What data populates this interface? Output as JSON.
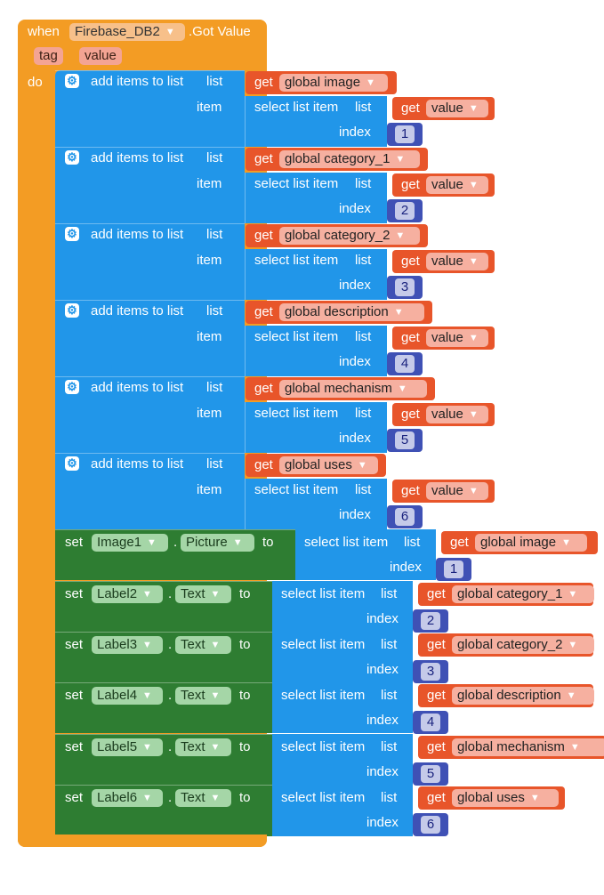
{
  "event": {
    "when_label": "when",
    "component": "Firebase_DB2",
    "event_name": ".Got Value",
    "params": [
      "tag",
      "value"
    ],
    "do_label": "do"
  },
  "labels": {
    "add_items": "add items to list",
    "list": "list",
    "item": "item",
    "select_list_item": "select list item",
    "index": "index",
    "get": "get",
    "set": "set",
    "dot": ".",
    "to": "to"
  },
  "add_blocks": [
    {
      "list_var": "global image",
      "item_var": "value",
      "index": "1"
    },
    {
      "list_var": "global category_1",
      "item_var": "value",
      "index": "2"
    },
    {
      "list_var": "global category_2",
      "item_var": "value",
      "index": "3"
    },
    {
      "list_var": "global description",
      "item_var": "value",
      "index": "4"
    },
    {
      "list_var": "global mechanism",
      "item_var": "value",
      "index": "5"
    },
    {
      "list_var": "global uses",
      "item_var": "value",
      "index": "6"
    }
  ],
  "set_blocks": [
    {
      "component": "Image1",
      "property": "Picture",
      "list_var": "global image",
      "index": "1"
    },
    {
      "component": "Label2",
      "property": "Text",
      "list_var": "global category_1",
      "index": "2"
    },
    {
      "component": "Label3",
      "property": "Text",
      "list_var": "global category_2",
      "index": "3"
    },
    {
      "component": "Label4",
      "property": "Text",
      "list_var": "global description",
      "index": "4"
    },
    {
      "component": "Label5",
      "property": "Text",
      "list_var": "global mechanism",
      "index": "5"
    },
    {
      "component": "Label6",
      "property": "Text",
      "list_var": "global uses",
      "index": "6"
    }
  ],
  "icons": {
    "mutator": "gear-icon",
    "dropdown": "triangle-down-icon"
  },
  "colors": {
    "event": "#f39c24",
    "list": "#2196e9",
    "setter": "#2e7d32",
    "variable": "#e8552a",
    "number": "#3f51b5"
  }
}
